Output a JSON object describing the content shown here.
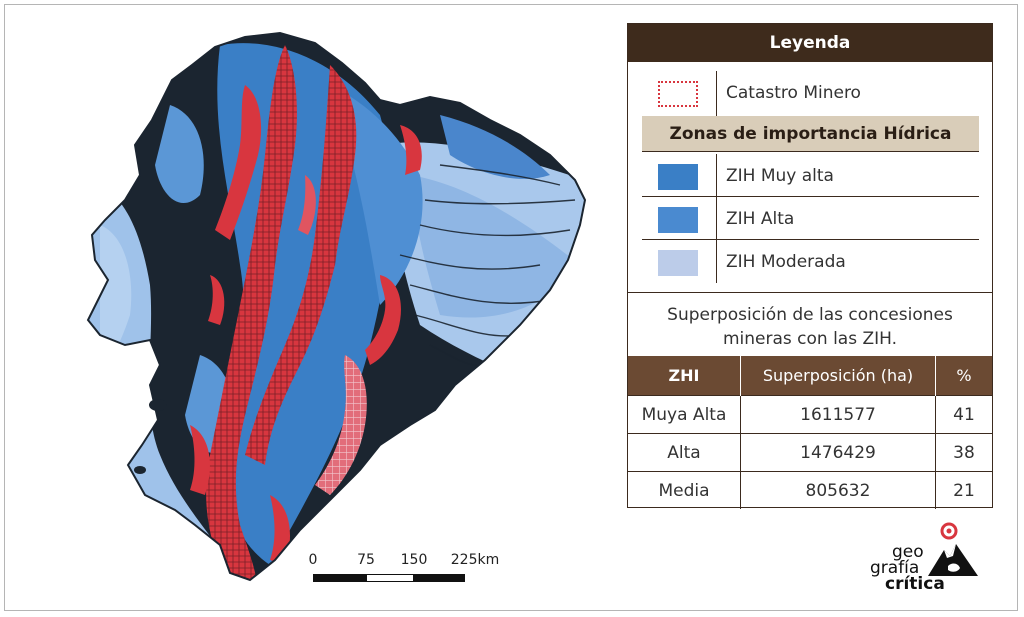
{
  "legend": {
    "title": "Leyenda",
    "catastro_label": "Catastro Minero",
    "section_title": "Zonas de importancia Hídrica",
    "items": [
      {
        "label": "ZIH Muy alta",
        "color": "#3a7fc6"
      },
      {
        "label": "ZIH Alta",
        "color": "#4a8ad0"
      },
      {
        "label": "ZIH Moderada",
        "color": "#bccce9"
      }
    ],
    "catastro_color": "#d8363f",
    "description_line1": "Superposición de las concesiones",
    "description_line2": "mineras con las ZIH."
  },
  "table": {
    "headers": [
      "ZHI",
      "Superposición (ha)",
      "%"
    ],
    "rows": [
      {
        "zone": "Muya Alta",
        "area": "1611577",
        "pct": "41"
      },
      {
        "zone": "Alta",
        "area": "1476429",
        "pct": "38"
      },
      {
        "zone": "Media",
        "area": "805632",
        "pct": "21"
      }
    ]
  },
  "scale_bar": {
    "labels": [
      "0",
      "75",
      "150",
      "225km"
    ]
  },
  "logo": {
    "line1": "geo",
    "line2": "grafía",
    "line3": "crítica"
  },
  "map_colors": {
    "muy_alta": "#3a7fc6",
    "moderada": "#9fc2ea",
    "dark": "#1b2530",
    "mining": "#d8363f"
  }
}
